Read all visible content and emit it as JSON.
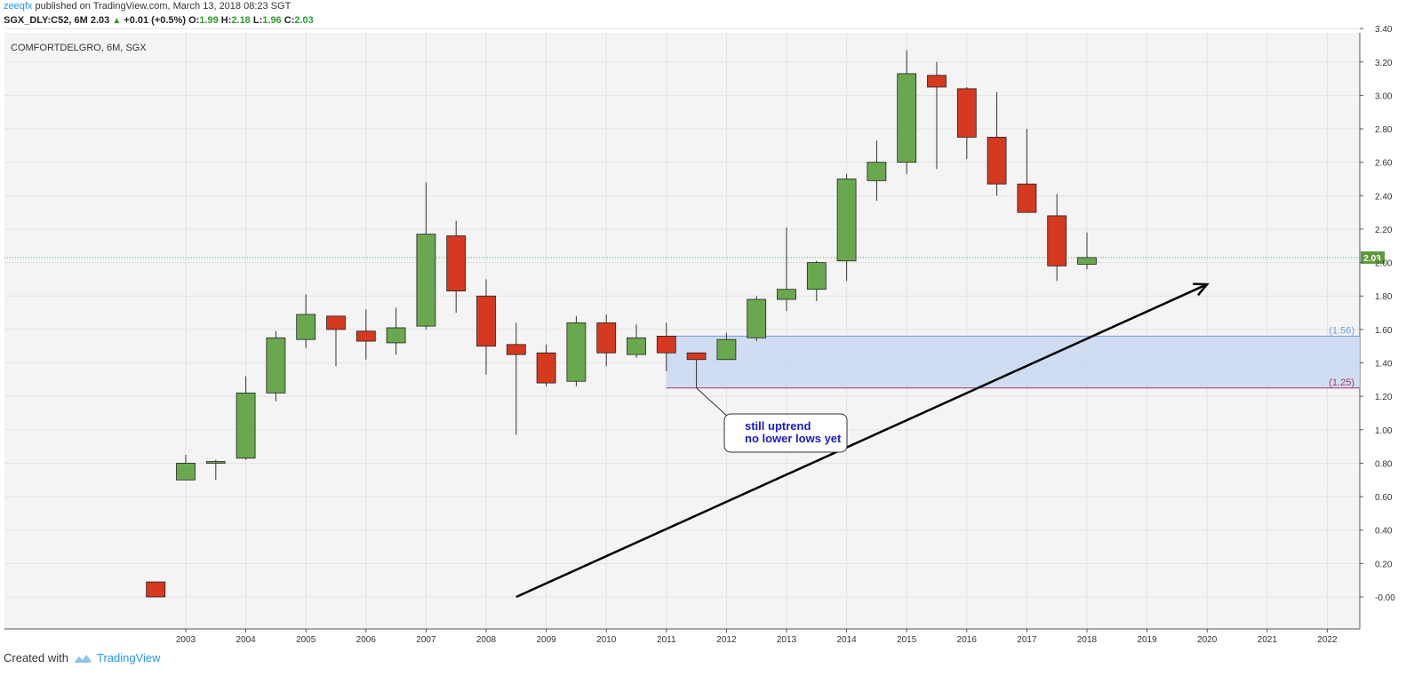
{
  "header": {
    "author": "zeeqfx",
    "published": "published on TradingView.com, March 13, 2018 08:23 SGT",
    "symbol": "SGX_DLY:C52, 6M",
    "last": "2.03",
    "change": "+0.01 (+0.5%)",
    "o_label": "O:",
    "o": "1.99",
    "h_label": "H:",
    "h": "2.18",
    "l_label": "L:",
    "l": "1.96",
    "c_label": "C:",
    "c": "2.03"
  },
  "footer": {
    "created_with": "Created with",
    "brand": "TradingView"
  },
  "colors": {
    "up": "#6aa84f",
    "down": "#d5391f",
    "zone": "#c9d7f0",
    "arrow": "#000000"
  },
  "chart_data": {
    "type": "candlestick",
    "title": "COMFORTDELGRO, 6M, SGX",
    "ylim": [
      -0.1,
      3.45
    ],
    "yticks": [
      "-0.00",
      "0.20",
      "0.40",
      "0.60",
      "0.80",
      "1.00",
      "1.20",
      "1.40",
      "1.60",
      "1.80",
      "2.00",
      "2.20",
      "2.40",
      "2.60",
      "2.80",
      "3.00",
      "3.20",
      "3.40"
    ],
    "xticks": [
      "2003",
      "2004",
      "2005",
      "2006",
      "2007",
      "2008",
      "2009",
      "2010",
      "2011",
      "2012",
      "2013",
      "2014",
      "2015",
      "2016",
      "2017",
      "2018",
      "2019",
      "2020",
      "2021",
      "2022"
    ],
    "last_price_label": "2.03",
    "last_price": 2.03,
    "candles": [
      {
        "t": 2002.5,
        "o": 0.09,
        "h": 0.09,
        "l": 0.0,
        "c": 0.0
      },
      {
        "t": 2003.0,
        "o": 0.7,
        "h": 0.85,
        "l": 0.7,
        "c": 0.8
      },
      {
        "t": 2003.5,
        "o": 0.8,
        "h": 0.82,
        "l": 0.7,
        "c": 0.81
      },
      {
        "t": 2004.0,
        "o": 0.83,
        "h": 1.32,
        "l": 0.82,
        "c": 1.22
      },
      {
        "t": 2004.5,
        "o": 1.22,
        "h": 1.59,
        "l": 1.17,
        "c": 1.55
      },
      {
        "t": 2005.0,
        "o": 1.54,
        "h": 1.81,
        "l": 1.49,
        "c": 1.69
      },
      {
        "t": 2005.5,
        "o": 1.68,
        "h": 1.68,
        "l": 1.38,
        "c": 1.6
      },
      {
        "t": 2006.0,
        "o": 1.59,
        "h": 1.72,
        "l": 1.42,
        "c": 1.53
      },
      {
        "t": 2006.5,
        "o": 1.52,
        "h": 1.73,
        "l": 1.45,
        "c": 1.61
      },
      {
        "t": 2007.0,
        "o": 1.62,
        "h": 2.48,
        "l": 1.6,
        "c": 2.17
      },
      {
        "t": 2007.5,
        "o": 2.16,
        "h": 2.25,
        "l": 1.7,
        "c": 1.83
      },
      {
        "t": 2008.0,
        "o": 1.8,
        "h": 1.9,
        "l": 1.33,
        "c": 1.5
      },
      {
        "t": 2008.5,
        "o": 1.51,
        "h": 1.64,
        "l": 0.97,
        "c": 1.45
      },
      {
        "t": 2009.0,
        "o": 1.46,
        "h": 1.51,
        "l": 1.26,
        "c": 1.28
      },
      {
        "t": 2009.5,
        "o": 1.29,
        "h": 1.68,
        "l": 1.26,
        "c": 1.64
      },
      {
        "t": 2010.0,
        "o": 1.64,
        "h": 1.69,
        "l": 1.38,
        "c": 1.46
      },
      {
        "t": 2010.5,
        "o": 1.45,
        "h": 1.63,
        "l": 1.43,
        "c": 1.55
      },
      {
        "t": 2011.0,
        "o": 1.56,
        "h": 1.64,
        "l": 1.35,
        "c": 1.46
      },
      {
        "t": 2011.5,
        "o": 1.46,
        "h": 1.46,
        "l": 1.25,
        "c": 1.42
      },
      {
        "t": 2012.0,
        "o": 1.42,
        "h": 1.58,
        "l": 1.42,
        "c": 1.54
      },
      {
        "t": 2012.5,
        "o": 1.55,
        "h": 1.8,
        "l": 1.53,
        "c": 1.78
      },
      {
        "t": 2013.0,
        "o": 1.78,
        "h": 2.21,
        "l": 1.71,
        "c": 1.84
      },
      {
        "t": 2013.5,
        "o": 1.84,
        "h": 2.01,
        "l": 1.77,
        "c": 2.0
      },
      {
        "t": 2014.0,
        "o": 2.01,
        "h": 2.53,
        "l": 1.89,
        "c": 2.5
      },
      {
        "t": 2014.5,
        "o": 2.49,
        "h": 2.73,
        "l": 2.37,
        "c": 2.6
      },
      {
        "t": 2015.0,
        "o": 2.6,
        "h": 3.27,
        "l": 2.53,
        "c": 3.13
      },
      {
        "t": 2015.5,
        "o": 3.12,
        "h": 3.2,
        "l": 2.56,
        "c": 3.05
      },
      {
        "t": 2016.0,
        "o": 3.04,
        "h": 3.05,
        "l": 2.62,
        "c": 2.75
      },
      {
        "t": 2016.5,
        "o": 2.75,
        "h": 3.02,
        "l": 2.4,
        "c": 2.47
      },
      {
        "t": 2017.0,
        "o": 2.47,
        "h": 2.8,
        "l": 2.3,
        "c": 2.3
      },
      {
        "t": 2017.5,
        "o": 2.28,
        "h": 2.41,
        "l": 1.89,
        "c": 1.98
      },
      {
        "t": 2018.0,
        "o": 1.99,
        "h": 2.18,
        "l": 1.96,
        "c": 2.03
      }
    ],
    "zone": {
      "top": 1.56,
      "bottom": 1.25,
      "from": 2011.0,
      "top_label": "(1.56)",
      "bottom_label": "(1.25)"
    },
    "callout": {
      "line1": "still uptrend",
      "line2": "no lower lows yet",
      "anchor_t": 2011.5,
      "anchor_v": 1.25
    },
    "trend_arrow": {
      "from": [
        2008.5,
        0.0
      ],
      "to": [
        2020.0,
        1.87
      ]
    }
  }
}
